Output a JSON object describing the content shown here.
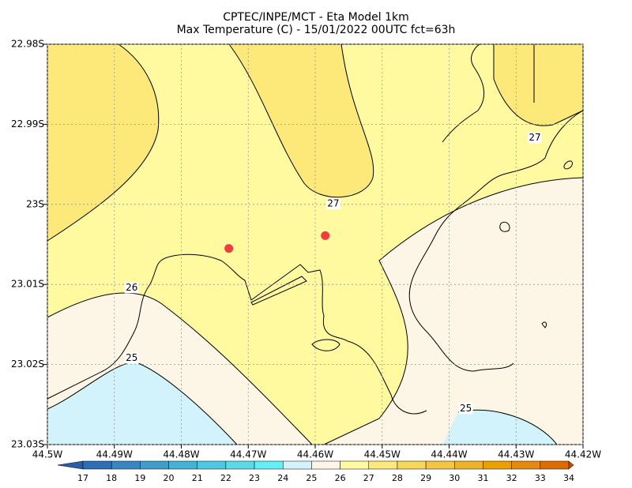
{
  "chart_data": {
    "type": "map",
    "title": "CPTEC/INPE/MCT -  Eta Model 1km",
    "subtitle": "Max Temperature (C) - 15/01/2022 00UTC fct=63h",
    "xlim": [
      -44.5,
      -44.42
    ],
    "ylim": [
      -23.03,
      -22.98
    ],
    "xticks": [
      {
        "value": -44.5,
        "label": "44.5W"
      },
      {
        "value": -44.49,
        "label": "44.49W"
      },
      {
        "value": -44.48,
        "label": "44.48W"
      },
      {
        "value": -44.47,
        "label": "44.47W"
      },
      {
        "value": -44.46,
        "label": "44.46W"
      },
      {
        "value": -44.45,
        "label": "44.45W"
      },
      {
        "value": -44.44,
        "label": "44.44W"
      },
      {
        "value": -44.43,
        "label": "44.43W"
      },
      {
        "value": -44.42,
        "label": "44.42W"
      }
    ],
    "yticks": [
      {
        "value": -22.98,
        "label": "22.98S"
      },
      {
        "value": -22.99,
        "label": "22.99S"
      },
      {
        "value": -23.0,
        "label": "23S"
      },
      {
        "value": -23.01,
        "label": "23.01S"
      },
      {
        "value": -23.02,
        "label": "23.02S"
      },
      {
        "value": -23.03,
        "label": "23.03S"
      }
    ],
    "grid": true,
    "markers": {
      "color": "#f03c3c",
      "lon": [
        -44.4729,
        -44.4585
      ],
      "lat": [
        -23.0055,
        -23.0039
      ]
    },
    "contour_labels": [
      {
        "value": 27,
        "lon": -44.4573,
        "lat": -22.9999
      },
      {
        "value": 27,
        "lon": -44.4272,
        "lat": -22.9917
      },
      {
        "value": 26,
        "lon": -44.4874,
        "lat": -23.0104
      },
      {
        "value": 25,
        "lon": -44.4874,
        "lat": -23.0192
      },
      {
        "value": 25,
        "lon": -44.4375,
        "lat": -23.0255
      }
    ],
    "colorbar": {
      "levels": [
        17,
        18,
        19,
        20,
        21,
        22,
        23,
        24,
        25,
        26,
        27,
        28,
        29,
        30,
        31,
        32,
        33,
        34
      ],
      "colors": [
        "#2a5fa8",
        "#2c6fb5",
        "#3a86c2",
        "#3f9dcc",
        "#45b3d6",
        "#4ec8e0",
        "#58dcea",
        "#62f0f7",
        "#d2f3fb",
        "#fdf6e6",
        "#fffaa0",
        "#fde87a",
        "#f8d85a",
        "#f2c640",
        "#efb32a",
        "#eba000",
        "#e58a10",
        "#de6a00",
        "#c84a00"
      ]
    }
  }
}
